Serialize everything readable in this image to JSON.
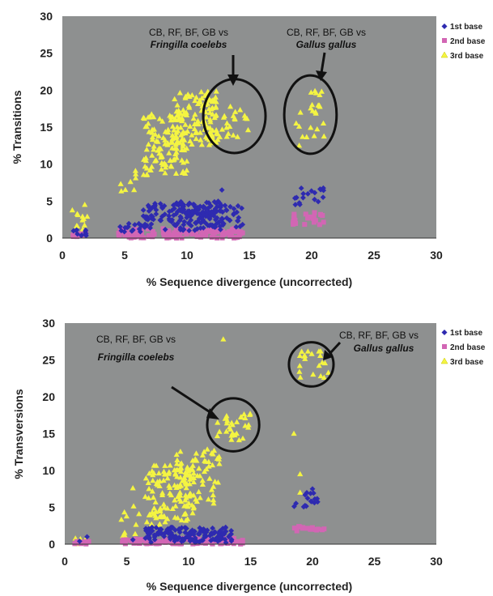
{
  "colors": {
    "plot_bg": "#8e9090",
    "base1": "#2e2ab0",
    "base2": "#d266b4",
    "base3": "#f4f442",
    "ellipse": "#111111",
    "arrow": "#111111"
  },
  "chart_data": [
    {
      "type": "scatter",
      "title": "",
      "xlabel": "% Sequence divergence (uncorrected)",
      "ylabel": "% Transitions",
      "xlim": [
        0,
        30
      ],
      "ylim": [
        0,
        30
      ],
      "xticks": [
        "0",
        "5",
        "10",
        "15",
        "20",
        "25",
        "30"
      ],
      "yticks": [
        "0",
        "5",
        "10",
        "15",
        "20",
        "25",
        "30"
      ],
      "legend": {
        "position": "right",
        "items": [
          {
            "label": "1st base",
            "marker": "diamond",
            "color": "#2e2ab0"
          },
          {
            "label": "2nd base",
            "marker": "square",
            "color": "#d266b4"
          },
          {
            "label": "3rd base",
            "marker": "triangle",
            "color": "#f4f442"
          }
        ]
      },
      "annotations": [
        {
          "line1": "CB, RF, BF, GB vs",
          "line2": "Fringilla coelebs"
        },
        {
          "line1": "CB, RF, BF, GB vs",
          "line2": "Gallus gallus"
        }
      ],
      "ellipses": [
        {
          "label": "Fringilla coelebs",
          "center": [
            13.8,
            16.5
          ],
          "radius": [
            2.5,
            5
          ]
        },
        {
          "label": "Gallus gallus",
          "center": [
            19.9,
            16.7
          ],
          "radius": [
            2.1,
            5.3
          ]
        }
      ],
      "series": [
        {
          "name": "1st base",
          "marker": "diamond",
          "clusters": [
            {
              "x": [
                0.8,
                2.0
              ],
              "y": [
                0.3,
                1.5
              ],
              "n": 10
            },
            {
              "x": [
                4.5,
                6.5
              ],
              "y": [
                0.8,
                2.0
              ],
              "n": 14
            },
            {
              "x": [
                6.5,
                13.0
              ],
              "y": [
                1.0,
                4.8
              ],
              "n": 150
            },
            {
              "x": [
                9.5,
                12.5
              ],
              "y": [
                2.5,
                5.0
              ],
              "n": 30
            },
            {
              "x": [
                12.5,
                14.5
              ],
              "y": [
                1.5,
                4.5
              ],
              "n": 25
            },
            {
              "x": [
                18.5,
                21.0
              ],
              "y": [
                4.5,
                6.8
              ],
              "n": 18
            }
          ],
          "points": [
            [
              12.8,
              6.5
            ]
          ]
        },
        {
          "name": "2nd base",
          "marker": "square",
          "clusters": [
            {
              "x": [
                0.8,
                2.0
              ],
              "y": [
                0.0,
                0.7
              ],
              "n": 12
            },
            {
              "x": [
                4.5,
                14.5
              ],
              "y": [
                0.0,
                1.3
              ],
              "n": 130
            },
            {
              "x": [
                18.5,
                21.0
              ],
              "y": [
                1.8,
                3.5
              ],
              "n": 22
            }
          ],
          "points": []
        },
        {
          "name": "3rd base",
          "marker": "triangle",
          "clusters": [
            {
              "x": [
                0.8,
                2.0
              ],
              "y": [
                1.0,
                4.0
              ],
              "n": 10
            },
            {
              "x": [
                4.5,
                6.0
              ],
              "y": [
                5.0,
                9.5
              ],
              "n": 8
            },
            {
              "x": [
                6.5,
                10.0
              ],
              "y": [
                8.5,
                17.0
              ],
              "n": 120
            },
            {
              "x": [
                9.0,
                12.5
              ],
              "y": [
                12.5,
                20.0
              ],
              "n": 110
            },
            {
              "x": [
                12.0,
                15.0
              ],
              "y": [
                13.0,
                18.5
              ],
              "n": 25
            },
            {
              "x": [
                18.5,
                21.0
              ],
              "y": [
                13.5,
                20.0
              ],
              "n": 22
            }
          ],
          "points": [
            [
              1.8,
              4.5
            ],
            [
              1.2,
              1.6
            ],
            [
              2.0,
              2.9
            ],
            [
              19.0,
              12.5
            ],
            [
              20.8,
              19.8
            ]
          ]
        }
      ]
    },
    {
      "type": "scatter",
      "title": "",
      "xlabel": "% Sequence divergence (uncorrected)",
      "ylabel": "% Transversions",
      "xlim": [
        0,
        30
      ],
      "ylim": [
        0,
        30
      ],
      "xticks": [
        "0",
        "5",
        "10",
        "15",
        "20",
        "25",
        "30"
      ],
      "yticks": [
        "0",
        "5",
        "10",
        "15",
        "20",
        "25",
        "30"
      ],
      "legend": {
        "position": "right",
        "items": [
          {
            "label": "1st base",
            "marker": "diamond",
            "color": "#2e2ab0"
          },
          {
            "label": "2nd base",
            "marker": "square",
            "color": "#d266b4"
          },
          {
            "label": "3rd base",
            "marker": "triangle",
            "color": "#f4f442"
          }
        ]
      },
      "annotations": [
        {
          "line1": "CB, RF, BF, GB vs",
          "line2": "Fringilla coelebs"
        },
        {
          "line1": "CB, RF, BF, GB vs",
          "line2": "Gallus gallus"
        }
      ],
      "ellipses": [
        {
          "label": "Fringilla coelebs",
          "center": [
            13.6,
            16.2
          ],
          "radius": [
            2.1,
            3.6
          ]
        },
        {
          "label": "Gallus gallus",
          "center": [
            19.9,
            24.4
          ],
          "radius": [
            1.8,
            3.0
          ]
        }
      ],
      "series": [
        {
          "name": "1st base",
          "marker": "diamond",
          "clusters": [
            {
              "x": [
                6.5,
                13.5
              ],
              "y": [
                0.2,
                2.3
              ],
              "n": 140
            },
            {
              "x": [
                18.5,
                21.0
              ],
              "y": [
                5.0,
                7.0
              ],
              "n": 16
            }
          ],
          "points": [
            [
              1.8,
              1.0
            ],
            [
              1.2,
              0.4
            ],
            [
              5.5,
              0.6
            ],
            [
              20.0,
              7.5
            ]
          ]
        },
        {
          "name": "2nd base",
          "marker": "square",
          "clusters": [
            {
              "x": [
                0.8,
                2.0
              ],
              "y": [
                0.0,
                0.4
              ],
              "n": 10
            },
            {
              "x": [
                4.5,
                14.5
              ],
              "y": [
                0.0,
                0.8
              ],
              "n": 120
            },
            {
              "x": [
                18.5,
                21.0
              ],
              "y": [
                1.8,
                2.5
              ],
              "n": 16
            }
          ],
          "points": []
        },
        {
          "name": "3rd base",
          "marker": "triangle",
          "clusters": [
            {
              "x": [
                0.8,
                2.0
              ],
              "y": [
                0.0,
                1.0
              ],
              "n": 8
            },
            {
              "x": [
                4.5,
                6.5
              ],
              "y": [
                0.5,
                5.5
              ],
              "n": 10
            },
            {
              "x": [
                6.5,
                10.5
              ],
              "y": [
                2.0,
                11.0
              ],
              "n": 120
            },
            {
              "x": [
                9.0,
                12.5
              ],
              "y": [
                5.5,
                13.0
              ],
              "n": 60
            },
            {
              "x": [
                12.3,
                15.0
              ],
              "y": [
                14.0,
                18.0
              ],
              "n": 30
            },
            {
              "x": [
                18.5,
                21.5
              ],
              "y": [
                22.5,
                26.5
              ],
              "n": 20
            }
          ],
          "points": [
            [
              12.8,
              27.8
            ],
            [
              18.5,
              15.0
            ],
            [
              19.0,
              9.5
            ],
            [
              19.0,
              7.0
            ],
            [
              5.5,
              7.6
            ],
            [
              4.8,
              1.0
            ]
          ]
        }
      ]
    }
  ]
}
